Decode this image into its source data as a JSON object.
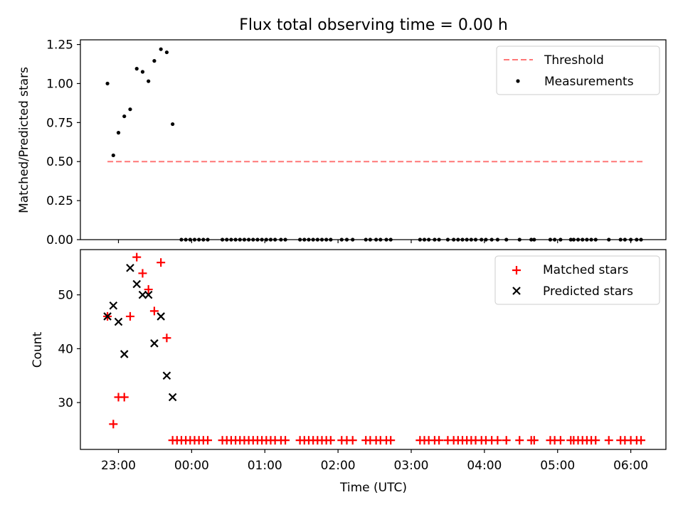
{
  "chart_data": [
    {
      "type": "scatter",
      "title": "Flux total observing time = 0.00 h",
      "xlabel": "",
      "ylabel": "Matched/Predicted stars",
      "ylim": [
        0,
        1.28
      ],
      "yticks": [
        0,
        0.25,
        0.5,
        0.75,
        1.0,
        1.25
      ],
      "ytick_labels": [
        "0.00",
        "0.25",
        "0.50",
        "0.75",
        "1.00",
        "1.25"
      ],
      "threshold": {
        "name": "Threshold",
        "value": 0.5,
        "x_start": -0.15,
        "x_end": 7.18,
        "color": "#ff7777"
      },
      "series": [
        {
          "name": "Measurements",
          "color": "#000000",
          "points": [
            [
              -0.15,
              1.0
            ],
            [
              -0.07,
              0.54
            ],
            [
              0.0,
              0.685
            ],
            [
              0.08,
              0.79
            ],
            [
              0.16,
              0.835
            ],
            [
              0.25,
              1.095
            ],
            [
              0.33,
              1.075
            ],
            [
              0.41,
              1.015
            ],
            [
              0.49,
              1.145
            ],
            [
              0.58,
              1.22
            ],
            [
              0.66,
              1.2
            ],
            [
              0.74,
              0.74
            ],
            [
              0.86,
              0
            ],
            [
              0.92,
              0
            ],
            [
              0.98,
              0
            ],
            [
              1.04,
              0
            ],
            [
              1.1,
              0
            ],
            [
              1.16,
              0
            ],
            [
              1.22,
              0
            ],
            [
              1.42,
              0
            ],
            [
              1.48,
              0
            ],
            [
              1.54,
              0
            ],
            [
              1.6,
              0
            ],
            [
              1.66,
              0
            ],
            [
              1.72,
              0
            ],
            [
              1.78,
              0
            ],
            [
              1.84,
              0
            ],
            [
              1.9,
              0
            ],
            [
              1.96,
              0
            ],
            [
              2.02,
              0
            ],
            [
              2.08,
              0
            ],
            [
              2.14,
              0
            ],
            [
              2.22,
              0
            ],
            [
              2.28,
              0
            ],
            [
              2.48,
              0
            ],
            [
              2.54,
              0
            ],
            [
              2.6,
              0
            ],
            [
              2.66,
              0
            ],
            [
              2.72,
              0
            ],
            [
              2.78,
              0
            ],
            [
              2.84,
              0
            ],
            [
              2.9,
              0
            ],
            [
              3.05,
              0
            ],
            [
              3.12,
              0
            ],
            [
              3.2,
              0
            ],
            [
              3.38,
              0
            ],
            [
              3.44,
              0
            ],
            [
              3.52,
              0
            ],
            [
              3.58,
              0
            ],
            [
              3.66,
              0
            ],
            [
              3.72,
              0
            ],
            [
              4.12,
              0
            ],
            [
              4.18,
              0
            ],
            [
              4.24,
              0
            ],
            [
              4.32,
              0
            ],
            [
              4.38,
              0
            ],
            [
              4.5,
              0
            ],
            [
              4.58,
              0
            ],
            [
              4.64,
              0
            ],
            [
              4.7,
              0
            ],
            [
              4.76,
              0
            ],
            [
              4.82,
              0
            ],
            [
              4.88,
              0
            ],
            [
              4.96,
              0
            ],
            [
              5.02,
              0
            ],
            [
              5.1,
              0
            ],
            [
              5.18,
              0
            ],
            [
              5.3,
              0
            ],
            [
              5.48,
              0
            ],
            [
              5.64,
              0
            ],
            [
              5.68,
              0
            ],
            [
              5.9,
              0
            ],
            [
              5.96,
              0
            ],
            [
              6.04,
              0
            ],
            [
              6.18,
              0
            ],
            [
              6.22,
              0
            ],
            [
              6.28,
              0
            ],
            [
              6.34,
              0
            ],
            [
              6.4,
              0
            ],
            [
              6.46,
              0
            ],
            [
              6.52,
              0
            ],
            [
              6.7,
              0
            ],
            [
              6.86,
              0
            ],
            [
              6.92,
              0
            ],
            [
              7.0,
              0
            ],
            [
              7.08,
              0
            ],
            [
              7.14,
              0
            ]
          ]
        }
      ],
      "legend": {
        "position": "top-right",
        "entries": [
          "Threshold",
          "Measurements"
        ]
      }
    },
    {
      "type": "scatter",
      "title": "",
      "xlabel": "Time (UTC)",
      "ylabel": "Count",
      "ylim": [
        21.3,
        58.4
      ],
      "yticks": [
        30,
        40,
        50
      ],
      "ytick_labels": [
        "30",
        "40",
        "50"
      ],
      "xlim": [
        -0.52,
        7.48
      ],
      "xticks": [
        0,
        1,
        2,
        3,
        4,
        5,
        6,
        7
      ],
      "xtick_labels": [
        "23:00",
        "00:00",
        "01:00",
        "02:00",
        "03:00",
        "04:00",
        "05:00",
        "06:00"
      ],
      "series": [
        {
          "name": "Matched stars",
          "marker": "plus",
          "color": "#ff0000",
          "points": [
            [
              -0.15,
              46
            ],
            [
              -0.07,
              26
            ],
            [
              0.0,
              31
            ],
            [
              0.08,
              31
            ],
            [
              0.16,
              46
            ],
            [
              0.25,
              57
            ],
            [
              0.33,
              54
            ],
            [
              0.41,
              51
            ],
            [
              0.49,
              47
            ],
            [
              0.58,
              56
            ],
            [
              0.66,
              42
            ],
            [
              0.74,
              23
            ],
            [
              0.8,
              23
            ],
            [
              0.86,
              23
            ],
            [
              0.92,
              23
            ],
            [
              0.98,
              23
            ],
            [
              1.04,
              23
            ],
            [
              1.1,
              23
            ],
            [
              1.16,
              23
            ],
            [
              1.22,
              23
            ],
            [
              1.42,
              23
            ],
            [
              1.48,
              23
            ],
            [
              1.54,
              23
            ],
            [
              1.6,
              23
            ],
            [
              1.66,
              23
            ],
            [
              1.72,
              23
            ],
            [
              1.78,
              23
            ],
            [
              1.84,
              23
            ],
            [
              1.9,
              23
            ],
            [
              1.96,
              23
            ],
            [
              2.02,
              23
            ],
            [
              2.08,
              23
            ],
            [
              2.14,
              23
            ],
            [
              2.22,
              23
            ],
            [
              2.28,
              23
            ],
            [
              2.48,
              23
            ],
            [
              2.54,
              23
            ],
            [
              2.6,
              23
            ],
            [
              2.66,
              23
            ],
            [
              2.72,
              23
            ],
            [
              2.78,
              23
            ],
            [
              2.84,
              23
            ],
            [
              2.9,
              23
            ],
            [
              3.05,
              23
            ],
            [
              3.12,
              23
            ],
            [
              3.2,
              23
            ],
            [
              3.38,
              23
            ],
            [
              3.44,
              23
            ],
            [
              3.52,
              23
            ],
            [
              3.58,
              23
            ],
            [
              3.66,
              23
            ],
            [
              3.72,
              23
            ],
            [
              4.12,
              23
            ],
            [
              4.18,
              23
            ],
            [
              4.24,
              23
            ],
            [
              4.32,
              23
            ],
            [
              4.38,
              23
            ],
            [
              4.5,
              23
            ],
            [
              4.58,
              23
            ],
            [
              4.64,
              23
            ],
            [
              4.7,
              23
            ],
            [
              4.76,
              23
            ],
            [
              4.82,
              23
            ],
            [
              4.88,
              23
            ],
            [
              4.96,
              23
            ],
            [
              5.02,
              23
            ],
            [
              5.1,
              23
            ],
            [
              5.18,
              23
            ],
            [
              5.3,
              23
            ],
            [
              5.48,
              23
            ],
            [
              5.64,
              23
            ],
            [
              5.68,
              23
            ],
            [
              5.9,
              23
            ],
            [
              5.96,
              23
            ],
            [
              6.04,
              23
            ],
            [
              6.18,
              23
            ],
            [
              6.22,
              23
            ],
            [
              6.28,
              23
            ],
            [
              6.34,
              23
            ],
            [
              6.4,
              23
            ],
            [
              6.46,
              23
            ],
            [
              6.52,
              23
            ],
            [
              6.7,
              23
            ],
            [
              6.86,
              23
            ],
            [
              6.92,
              23
            ],
            [
              7.0,
              23
            ],
            [
              7.08,
              23
            ],
            [
              7.14,
              23
            ]
          ]
        },
        {
          "name": "Predicted stars",
          "marker": "x",
          "color": "#000000",
          "points": [
            [
              -0.15,
              46
            ],
            [
              -0.07,
              48
            ],
            [
              0.0,
              45
            ],
            [
              0.08,
              39
            ],
            [
              0.16,
              55
            ],
            [
              0.25,
              52
            ],
            [
              0.33,
              50
            ],
            [
              0.41,
              50
            ],
            [
              0.49,
              41
            ],
            [
              0.58,
              46
            ],
            [
              0.66,
              35
            ],
            [
              0.74,
              31
            ]
          ]
        }
      ],
      "legend": {
        "position": "top-right",
        "entries": [
          "Matched stars",
          "Predicted stars"
        ]
      }
    }
  ]
}
